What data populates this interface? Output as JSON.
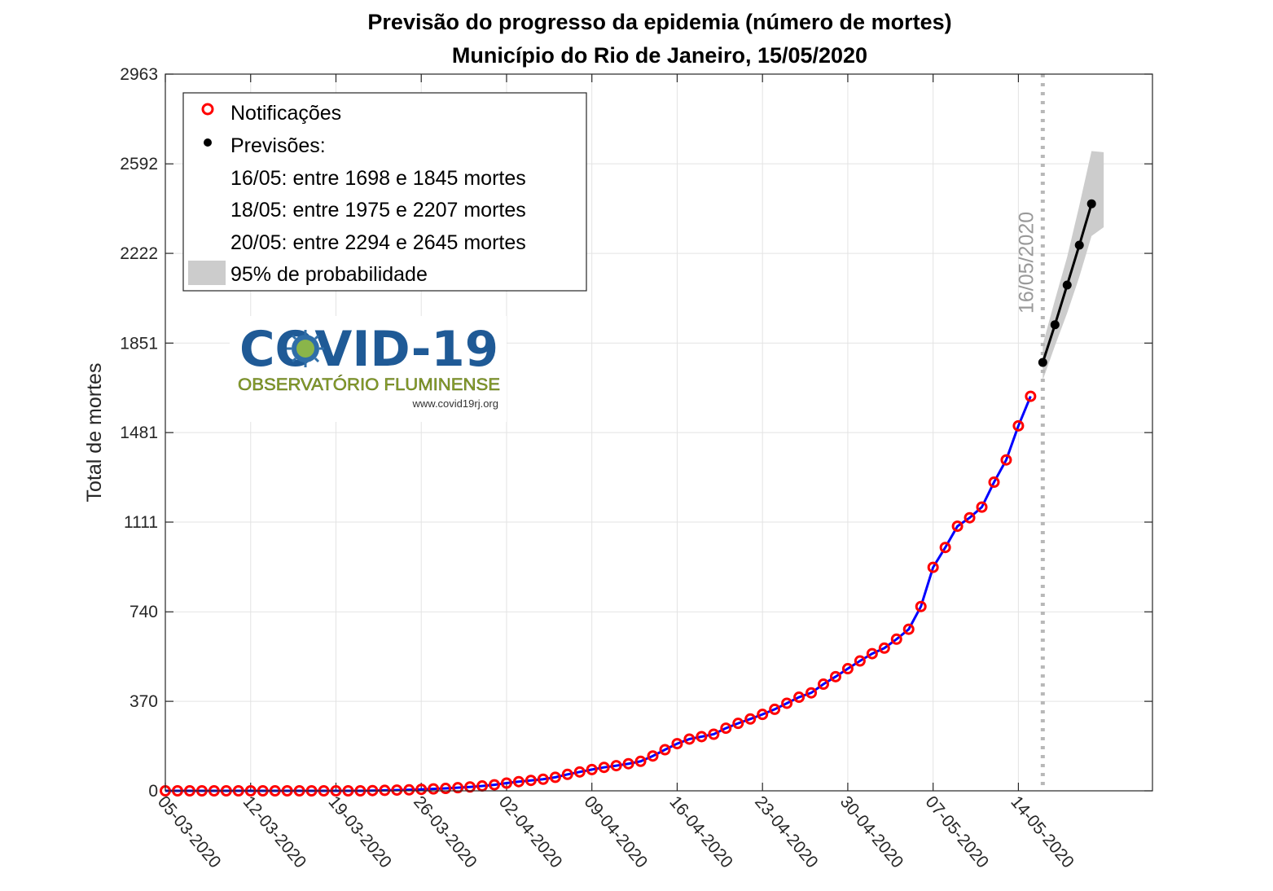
{
  "chart_data": {
    "type": "line",
    "title": [
      "Previsão do progresso da epidemia (número de mortes)",
      "Município do Rio de Janeiro, 15/05/2020"
    ],
    "ylabel": "Total de mortes",
    "xlabel": "",
    "yticks": [
      0,
      370,
      740,
      1111,
      1481,
      1851,
      2222,
      2592,
      2963
    ],
    "ylim": [
      0,
      2963
    ],
    "xlim": [
      "05-03-2020",
      "25-05-2020"
    ],
    "xticks": [
      "05-03-2020",
      "12-03-2020",
      "19-03-2020",
      "26-03-2020",
      "02-04-2020",
      "09-04-2020",
      "16-04-2020",
      "23-04-2020",
      "30-04-2020",
      "07-05-2020",
      "14-05-2020"
    ],
    "grid": true,
    "legend_position": "top-left",
    "series": [
      {
        "name": "Notificações",
        "color": "#ff0000",
        "line_color": "#0000ff",
        "x": [
          "05-03-2020",
          "06-03-2020",
          "07-03-2020",
          "08-03-2020",
          "09-03-2020",
          "10-03-2020",
          "11-03-2020",
          "12-03-2020",
          "13-03-2020",
          "14-03-2020",
          "15-03-2020",
          "16-03-2020",
          "17-03-2020",
          "18-03-2020",
          "19-03-2020",
          "20-03-2020",
          "21-03-2020",
          "22-03-2020",
          "23-03-2020",
          "24-03-2020",
          "25-03-2020",
          "26-03-2020",
          "27-03-2020",
          "28-03-2020",
          "29-03-2020",
          "30-03-2020",
          "31-03-2020",
          "01-04-2020",
          "02-04-2020",
          "03-04-2020",
          "04-04-2020",
          "05-04-2020",
          "06-04-2020",
          "07-04-2020",
          "08-04-2020",
          "09-04-2020",
          "10-04-2020",
          "11-04-2020",
          "12-04-2020",
          "13-04-2020",
          "14-04-2020",
          "15-04-2020",
          "16-04-2020",
          "17-04-2020",
          "18-04-2020",
          "19-04-2020",
          "20-04-2020",
          "21-04-2020",
          "22-04-2020",
          "23-04-2020",
          "24-04-2020",
          "25-04-2020",
          "26-04-2020",
          "27-04-2020",
          "28-04-2020",
          "29-04-2020",
          "30-04-2020",
          "01-05-2020",
          "02-05-2020",
          "03-05-2020",
          "04-05-2020",
          "05-05-2020",
          "06-05-2020",
          "07-05-2020",
          "08-05-2020",
          "09-05-2020",
          "10-05-2020",
          "11-05-2020",
          "12-05-2020",
          "13-05-2020",
          "14-05-2020",
          "15-05-2020"
        ],
        "values": [
          0,
          0,
          0,
          0,
          0,
          0,
          0,
          0,
          0,
          0,
          0,
          0,
          0,
          0,
          0,
          0,
          0,
          1,
          2,
          3,
          4,
          6,
          8,
          10,
          13,
          16,
          20,
          25,
          32,
          38,
          43,
          48,
          56,
          68,
          78,
          88,
          97,
          104,
          112,
          122,
          144,
          170,
          195,
          214,
          224,
          234,
          259,
          279,
          297,
          316,
          337,
          362,
          387,
          405,
          441,
          472,
          505,
          537,
          567,
          590,
          627,
          668,
          762,
          924,
          1006,
          1094,
          1129,
          1173,
          1276,
          1368,
          1509,
          1631
        ]
      },
      {
        "name": "Previsões:",
        "color": "#000000",
        "x": [
          "16-05-2020",
          "17-05-2020",
          "18-05-2020",
          "19-05-2020",
          "20-05-2020",
          "21-05-2020"
        ],
        "values": [
          1771,
          1927,
          2091,
          2256,
          2427,
          2470
        ],
        "band_lower": [
          1698,
          1840,
          1975,
          2125,
          2294,
          2330
        ],
        "band_upper": [
          1845,
          2030,
          2207,
          2420,
          2645,
          2640
        ]
      }
    ],
    "legend_notes": [
      "16/05: entre 1698 e 1845 mortes",
      "18/05: entre 1975 e 2207 mortes",
      "20/05: entre 2294 e 2645 mortes"
    ],
    "band_label": "95% de probabilidade",
    "band_color": "#cccccc",
    "vline": {
      "x": "16-05-2020",
      "label": "16/05/2020",
      "color": "#b0b0b0"
    }
  },
  "logo": {
    "title": "COVID-19",
    "subtitle": "OBSERVATÓRIO FLUMINENSE",
    "url": "www.covid19rj.org"
  }
}
